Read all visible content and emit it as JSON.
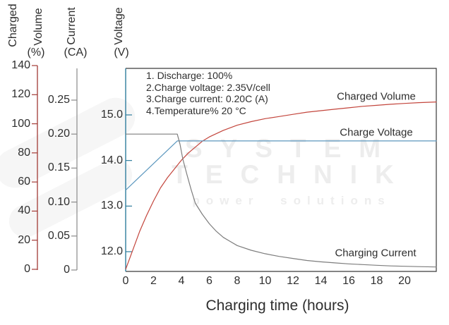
{
  "axis_titles": {
    "charged": "Charged",
    "volume": "Volume",
    "volume_unit": "(%)",
    "current": "Current",
    "current_unit": "(CA)",
    "voltage": "Voltage",
    "voltage_unit": "(V)"
  },
  "annotations": {
    "line1": "1. Discharge: 100%",
    "line2": "2.Charge voltage: 2.35V/cell",
    "line3": "3.Charge current: 0.20C (A)",
    "line4": "4.Temperature% 20 °C"
  },
  "curve_labels": {
    "charged_volume": "Charged Volume",
    "charge_voltage": "Charge Voltage",
    "charging_current": "Charging Current"
  },
  "watermark": {
    "line1": "SYSTEM",
    "line2": "TECHNIK",
    "line3": "power solutions"
  },
  "colors": {
    "volume_axis": "#a23a35",
    "volume_curve": "#c3453c",
    "current_axis": "#8a8a8a",
    "current_curve": "#7d7d7d",
    "voltage_axis": "#2f7d9d",
    "voltage_curve": "#5b97be",
    "frame": "#3a3a3a",
    "text": "#2e2e2e"
  },
  "chart_data": {
    "type": "line",
    "title": "",
    "xlabel": "Charging time (hours)",
    "x_ticks": [
      0,
      2,
      4,
      6,
      8,
      10,
      12,
      14,
      16,
      18,
      20
    ],
    "x_range": [
      0,
      22.3
    ],
    "grid": false,
    "y_axes": {
      "charged_volume": {
        "label": "Charged Volume (%)",
        "range": [
          0,
          140
        ],
        "tick_values": [
          0,
          20,
          40,
          60,
          80,
          100,
          120,
          140
        ],
        "tick_labels": [
          "0",
          "20",
          "40",
          "60",
          "80",
          "100",
          "120",
          "140"
        ]
      },
      "current": {
        "label": "Current (CA)",
        "range": [
          0,
          0.25
        ],
        "tick_values": [
          0,
          0.05,
          0.1,
          0.15,
          0.2,
          0.25
        ],
        "tick_labels": [
          "0",
          "0.05",
          "0.10",
          "0.15",
          "0.20",
          "0.25"
        ]
      },
      "voltage": {
        "label": "Voltage (V)",
        "range": [
          11.6,
          15.5
        ],
        "tick_values": [
          12,
          13,
          14,
          15
        ],
        "tick_labels": [
          "12.0",
          "13.0",
          "14.0",
          "15.0"
        ]
      }
    },
    "series": [
      {
        "name": "Charged Volume",
        "axis": "charged_volume",
        "points": [
          [
            0,
            0
          ],
          [
            0.5,
            13
          ],
          [
            1,
            26
          ],
          [
            1.5,
            37
          ],
          [
            2,
            47
          ],
          [
            2.5,
            56
          ],
          [
            3,
            63
          ],
          [
            3.5,
            69
          ],
          [
            4,
            75
          ],
          [
            4.5,
            80
          ],
          [
            5,
            84
          ],
          [
            5.5,
            88
          ],
          [
            6,
            91
          ],
          [
            7,
            95.5
          ],
          [
            8,
            99
          ],
          [
            9,
            101.5
          ],
          [
            10,
            103.5
          ],
          [
            11,
            105
          ],
          [
            12,
            106.5
          ],
          [
            13,
            108
          ],
          [
            14,
            109
          ],
          [
            15,
            110
          ],
          [
            16,
            111
          ],
          [
            17,
            112
          ],
          [
            18,
            112.7
          ],
          [
            19,
            113.4
          ],
          [
            20,
            114
          ],
          [
            21,
            114.5
          ],
          [
            22.3,
            115
          ]
        ]
      },
      {
        "name": "Charge Voltage",
        "axis": "voltage",
        "points": [
          [
            0,
            13.35
          ],
          [
            3.7,
            14.43
          ],
          [
            22.3,
            14.43
          ]
        ]
      },
      {
        "name": "Charging Current",
        "axis": "current",
        "points": [
          [
            0,
            0.2
          ],
          [
            3.7,
            0.2
          ],
          [
            3.9,
            0.185
          ],
          [
            4.1,
            0.163
          ],
          [
            4.4,
            0.14
          ],
          [
            4.7,
            0.118
          ],
          [
            5,
            0.098
          ],
          [
            5.5,
            0.082
          ],
          [
            6,
            0.068
          ],
          [
            6.5,
            0.057
          ],
          [
            7,
            0.048
          ],
          [
            7.5,
            0.042
          ],
          [
            8,
            0.036
          ],
          [
            9,
            0.029
          ],
          [
            10,
            0.024
          ],
          [
            11,
            0.02
          ],
          [
            12,
            0.017
          ],
          [
            13,
            0.014
          ],
          [
            14,
            0.012
          ],
          [
            15,
            0.0105
          ],
          [
            16,
            0.009
          ],
          [
            17,
            0.008
          ],
          [
            18,
            0.007
          ],
          [
            19,
            0.006
          ],
          [
            20,
            0.0055
          ],
          [
            21,
            0.005
          ],
          [
            22.3,
            0.0045
          ]
        ]
      }
    ]
  }
}
